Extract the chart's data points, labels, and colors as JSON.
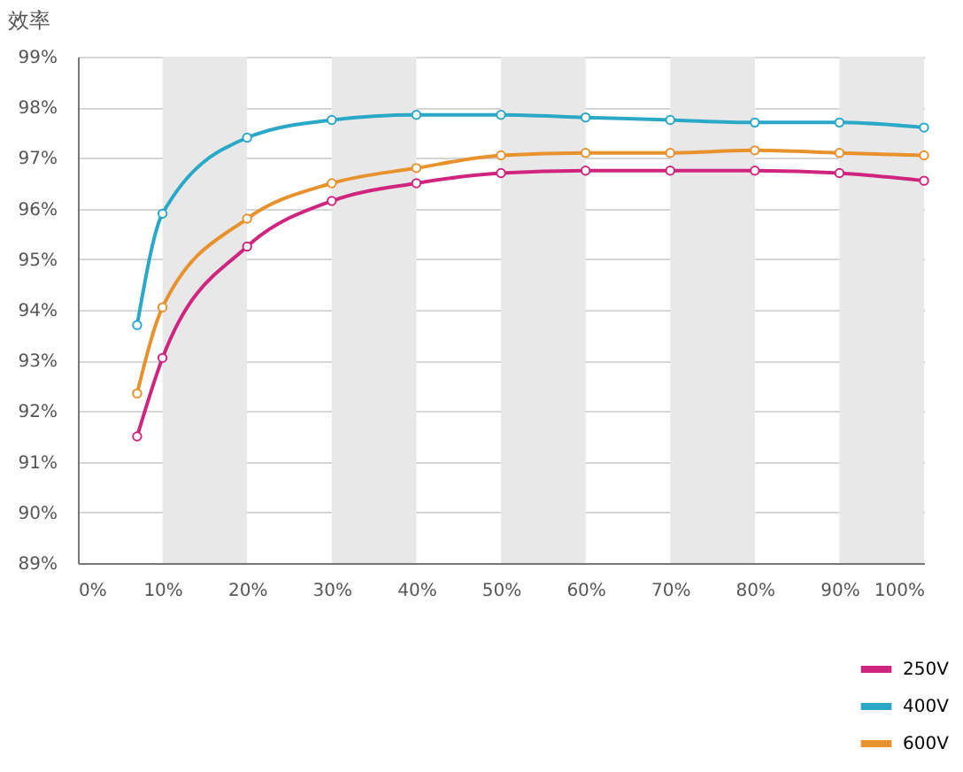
{
  "chart_data": {
    "type": "line",
    "ylabel": "效率",
    "x": [
      7,
      10,
      20,
      30,
      40,
      50,
      60,
      70,
      80,
      90,
      100
    ],
    "series": [
      {
        "name": "250V",
        "color": "#d0257f",
        "values": [
          91.5,
          93.05,
          95.25,
          96.15,
          96.5,
          96.7,
          96.75,
          96.75,
          96.75,
          96.7,
          96.55
        ]
      },
      {
        "name": "400V",
        "color": "#2aa8c8",
        "values": [
          93.7,
          95.9,
          97.4,
          97.75,
          97.85,
          97.85,
          97.8,
          97.75,
          97.7,
          97.7,
          97.6
        ]
      },
      {
        "name": "600V",
        "color": "#e8922e",
        "values": [
          92.35,
          94.05,
          95.8,
          96.5,
          96.8,
          97.05,
          97.1,
          97.1,
          97.15,
          97.1,
          97.05
        ]
      }
    ],
    "xlim": [
      0,
      100
    ],
    "xticks": [
      {
        "value": 0,
        "label": "0%"
      },
      {
        "value": 10,
        "label": "10%"
      },
      {
        "value": 20,
        "label": "20%"
      },
      {
        "value": 30,
        "label": "30%"
      },
      {
        "value": 40,
        "label": "40%"
      },
      {
        "value": 50,
        "label": "50%"
      },
      {
        "value": 60,
        "label": "60%"
      },
      {
        "value": 70,
        "label": "70%"
      },
      {
        "value": 80,
        "label": "80%"
      },
      {
        "value": 90,
        "label": "90%"
      },
      {
        "value": 100,
        "label": "100%"
      }
    ],
    "ylim": [
      89,
      99
    ],
    "yticks": [
      {
        "value": 89,
        "label": "89%"
      },
      {
        "value": 90,
        "label": "90%"
      },
      {
        "value": 91,
        "label": "91%"
      },
      {
        "value": 92,
        "label": "92%"
      },
      {
        "value": 93,
        "label": "93%"
      },
      {
        "value": 94,
        "label": "94%"
      },
      {
        "value": 95,
        "label": "95%"
      },
      {
        "value": 96,
        "label": "96%"
      },
      {
        "value": 97,
        "label": "97%"
      },
      {
        "value": 98,
        "label": "98%"
      },
      {
        "value": 99,
        "label": "99%"
      }
    ],
    "bands": [
      {
        "axis": "x",
        "from": 10,
        "to": 20,
        "color": "#e8e8e8"
      },
      {
        "axis": "x",
        "from": 30,
        "to": 40,
        "color": "#e8e8e8"
      },
      {
        "axis": "x",
        "from": 50,
        "to": 60,
        "color": "#e8e8e8"
      },
      {
        "axis": "x",
        "from": 70,
        "to": 80,
        "color": "#e8e8e8"
      },
      {
        "axis": "x",
        "from": 90,
        "to": 100,
        "color": "#e8e8e8"
      }
    ],
    "grid": "y",
    "legend": "bottom right",
    "marker": "circle",
    "line_style": "solid"
  }
}
